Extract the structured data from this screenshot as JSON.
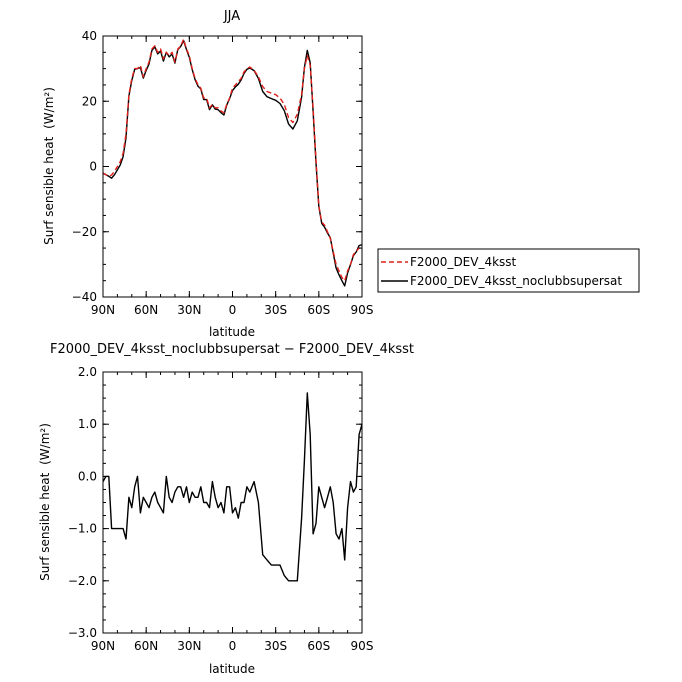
{
  "chart_data": [
    {
      "type": "line",
      "title": "JJA",
      "xlabel": "latitude",
      "ylabel": "Surf sensible heat",
      "ylabel_unit": "(W/m²)",
      "xlim": [
        90,
        -90
      ],
      "ylim": [
        -40,
        40
      ],
      "x_ticks": [
        90,
        60,
        30,
        0,
        -30,
        -60,
        -90
      ],
      "x_tick_labels": [
        "90N",
        "60N",
        "30N",
        "0",
        "30S",
        "60S",
        "90S"
      ],
      "y_ticks": [
        -40,
        -20,
        0,
        20,
        40
      ],
      "y_tick_labels": [
        "−40",
        "−20",
        "0",
        "20",
        "40"
      ],
      "legend_position": "right",
      "series": [
        {
          "name": "F2000_DEV_4ksst",
          "color": "#e0201a",
          "dash": "dashed",
          "x": [
            90,
            88,
            86,
            84,
            82,
            80,
            78,
            76,
            74,
            72,
            70,
            68,
            66,
            64,
            62,
            60,
            58,
            56,
            54,
            52,
            50,
            48,
            46,
            44,
            42,
            40,
            38,
            36,
            34,
            32,
            30,
            28,
            26,
            24,
            22,
            20,
            18,
            16,
            14,
            12,
            10,
            8,
            6,
            4,
            2,
            0,
            -2,
            -4,
            -6,
            -8,
            -10,
            -12,
            -15,
            -18,
            -21,
            -24,
            -27,
            -30,
            -33,
            -36,
            -39,
            -42,
            -45,
            -48,
            -50,
            -52,
            -54,
            -56,
            -58,
            -60,
            -62,
            -64,
            -66,
            -68,
            -70,
            -72,
            -74,
            -76,
            -78,
            -80,
            -82,
            -84,
            -86,
            -88,
            -90
          ],
          "y": [
            -2,
            -2.5,
            -3,
            -2.6,
            -1.5,
            0,
            1.5,
            4,
            10,
            22,
            27,
            30,
            30,
            31,
            27.5,
            30,
            32,
            36,
            37,
            35,
            36,
            33,
            35,
            34,
            35,
            32,
            36,
            37,
            39,
            36,
            34,
            30,
            27,
            25,
            24,
            21,
            21,
            18,
            19,
            18,
            18,
            17,
            16.5,
            19,
            21,
            24,
            25,
            26,
            27,
            29,
            30,
            30.5,
            29.5,
            27.5,
            24.5,
            23,
            22.5,
            22,
            21,
            19,
            15,
            13.5,
            16,
            22,
            30,
            34,
            31,
            18,
            2,
            -12,
            -17,
            -18,
            -20,
            -22,
            -26,
            -30,
            -32,
            -34,
            -35,
            -32,
            -30,
            -27,
            -26,
            -25,
            -25
          ]
        },
        {
          "name": "F2000_DEV_4ksst_noclubbsupersat",
          "color": "#000000",
          "dash": "solid",
          "x": [
            90,
            88,
            86,
            84,
            82,
            80,
            78,
            76,
            74,
            72,
            70,
            68,
            66,
            64,
            62,
            60,
            58,
            56,
            54,
            52,
            50,
            48,
            46,
            44,
            42,
            40,
            38,
            36,
            34,
            32,
            30,
            28,
            26,
            24,
            22,
            20,
            18,
            16,
            14,
            12,
            10,
            8,
            6,
            4,
            2,
            0,
            -2,
            -4,
            -6,
            -8,
            -10,
            -12,
            -15,
            -18,
            -21,
            -24,
            -27,
            -30,
            -33,
            -36,
            -39,
            -42,
            -45,
            -48,
            -50,
            -52,
            -54,
            -56,
            -58,
            -60,
            -62,
            -64,
            -66,
            -68,
            -70,
            -72,
            -74,
            -76,
            -78,
            -80,
            -82,
            -84,
            -86,
            -88,
            -90
          ],
          "y": [
            -2.1,
            -2.5,
            -3.0,
            -3.6,
            -2.5,
            -1.0,
            0.5,
            3.0,
            8.8,
            21.6,
            26.4,
            29.8,
            30.0,
            30.3,
            27.1,
            29.5,
            31.4,
            35.6,
            36.7,
            34.5,
            35.4,
            32.3,
            35.0,
            33.6,
            34.5,
            31.7,
            35.8,
            36.8,
            38.6,
            35.8,
            33.5,
            29.7,
            26.6,
            24.6,
            23.8,
            20.5,
            20.5,
            17.4,
            18.9,
            17.6,
            17.4,
            16.5,
            15.8,
            18.8,
            20.8,
            23.3,
            24.4,
            25.2,
            26.5,
            28.5,
            29.8,
            30.2,
            29.4,
            27.0,
            23.0,
            21.4,
            20.8,
            20.3,
            19.3,
            17.1,
            13.0,
            11.5,
            14.0,
            21.2,
            30.3,
            35.6,
            31.8,
            16.9,
            1.1,
            -12.2,
            -17.4,
            -18.6,
            -20.4,
            -21.8,
            -26.5,
            -31.1,
            -33.2,
            -35.0,
            -36.6,
            -32.6,
            -30.1,
            -27.3,
            -26.2,
            -24.2,
            -24.0
          ]
        }
      ]
    },
    {
      "type": "line",
      "title": "F2000_DEV_4ksst_noclubbsupersat − F2000_DEV_4ksst",
      "xlabel": "latitude",
      "ylabel": "Surf sensible heat",
      "ylabel_unit": "(W/m²)",
      "xlim": [
        90,
        -90
      ],
      "ylim": [
        -3.0,
        2.0
      ],
      "x_ticks": [
        90,
        60,
        30,
        0,
        -30,
        -60,
        -90
      ],
      "x_tick_labels": [
        "90N",
        "60N",
        "30N",
        "0",
        "30S",
        "60S",
        "90S"
      ],
      "y_ticks": [
        -3.0,
        -2.0,
        -1.0,
        0.0,
        1.0,
        2.0
      ],
      "y_tick_labels": [
        "−3.0",
        "−2.0",
        "−1.0",
        "0.0",
        "1.0",
        "2.0"
      ],
      "series": [
        {
          "color": "#000000",
          "dash": "solid",
          "x": [
            90,
            88,
            86,
            84,
            82,
            80,
            78,
            76,
            74,
            72,
            70,
            68,
            66,
            64,
            62,
            60,
            58,
            56,
            54,
            52,
            50,
            48,
            46,
            44,
            42,
            40,
            38,
            36,
            34,
            32,
            30,
            28,
            26,
            24,
            22,
            20,
            18,
            16,
            14,
            12,
            10,
            8,
            6,
            4,
            2,
            0,
            -2,
            -4,
            -6,
            -8,
            -10,
            -12,
            -15,
            -18,
            -21,
            -24,
            -27,
            -30,
            -33,
            -36,
            -39,
            -42,
            -45,
            -48,
            -50,
            -52,
            -54,
            -56,
            -58,
            -60,
            -62,
            -64,
            -66,
            -68,
            -70,
            -72,
            -74,
            -76,
            -78,
            -80,
            -82,
            -84,
            -86,
            -88,
            -90
          ],
          "y": [
            -0.1,
            0.0,
            0.0,
            -1.0,
            -1.0,
            -1.0,
            -1.0,
            -1.0,
            -1.2,
            -0.4,
            -0.6,
            -0.2,
            0.0,
            -0.7,
            -0.4,
            -0.5,
            -0.6,
            -0.4,
            -0.3,
            -0.5,
            -0.6,
            -0.7,
            0.0,
            -0.4,
            -0.5,
            -0.3,
            -0.2,
            -0.2,
            -0.4,
            -0.2,
            -0.5,
            -0.3,
            -0.4,
            -0.4,
            -0.2,
            -0.5,
            -0.5,
            -0.6,
            -0.1,
            -0.4,
            -0.6,
            -0.5,
            -0.7,
            -0.2,
            -0.2,
            -0.7,
            -0.6,
            -0.8,
            -0.5,
            -0.5,
            -0.2,
            -0.3,
            -0.1,
            -0.5,
            -1.5,
            -1.6,
            -1.7,
            -1.7,
            -1.7,
            -1.9,
            -2.0,
            -2.0,
            -2.0,
            -0.8,
            0.3,
            1.6,
            0.8,
            -1.1,
            -0.9,
            -0.2,
            -0.4,
            -0.6,
            -0.4,
            -0.2,
            -0.5,
            -1.1,
            -1.2,
            -1.0,
            -1.6,
            -0.6,
            -0.1,
            -0.3,
            -0.2,
            0.8,
            1.0
          ]
        }
      ]
    }
  ]
}
